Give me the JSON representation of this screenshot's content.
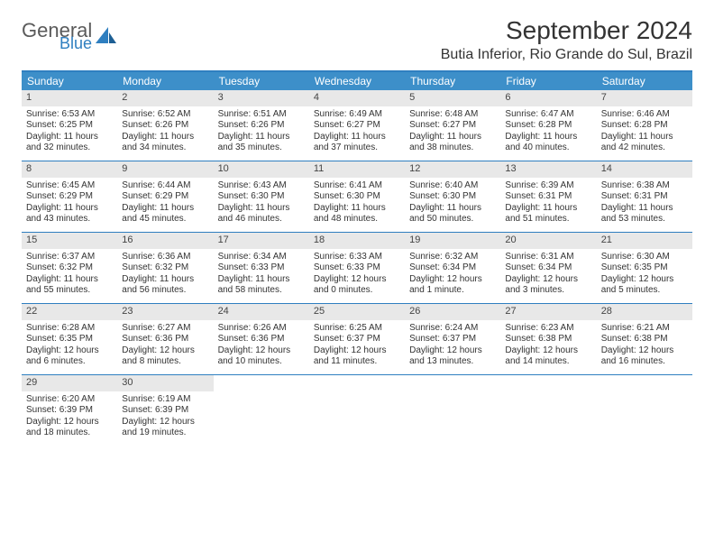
{
  "brand": {
    "part1": "General",
    "part2": "Blue"
  },
  "title": "September 2024",
  "location": "Butia Inferior, Rio Grande do Sul, Brazil",
  "colors": {
    "header_bar": "#3d8fc9",
    "border": "#2f7fc0",
    "daynum_bg": "#e8e8e8",
    "text": "#333333",
    "logo_gray": "#5a5a5a",
    "logo_blue": "#2f7fc0",
    "background": "#ffffff"
  },
  "weekdays": [
    "Sunday",
    "Monday",
    "Tuesday",
    "Wednesday",
    "Thursday",
    "Friday",
    "Saturday"
  ],
  "weeks": [
    [
      {
        "n": "1",
        "sr": "6:53 AM",
        "ss": "6:25 PM",
        "dl": "11 hours and 32 minutes."
      },
      {
        "n": "2",
        "sr": "6:52 AM",
        "ss": "6:26 PM",
        "dl": "11 hours and 34 minutes."
      },
      {
        "n": "3",
        "sr": "6:51 AM",
        "ss": "6:26 PM",
        "dl": "11 hours and 35 minutes."
      },
      {
        "n": "4",
        "sr": "6:49 AM",
        "ss": "6:27 PM",
        "dl": "11 hours and 37 minutes."
      },
      {
        "n": "5",
        "sr": "6:48 AM",
        "ss": "6:27 PM",
        "dl": "11 hours and 38 minutes."
      },
      {
        "n": "6",
        "sr": "6:47 AM",
        "ss": "6:28 PM",
        "dl": "11 hours and 40 minutes."
      },
      {
        "n": "7",
        "sr": "6:46 AM",
        "ss": "6:28 PM",
        "dl": "11 hours and 42 minutes."
      }
    ],
    [
      {
        "n": "8",
        "sr": "6:45 AM",
        "ss": "6:29 PM",
        "dl": "11 hours and 43 minutes."
      },
      {
        "n": "9",
        "sr": "6:44 AM",
        "ss": "6:29 PM",
        "dl": "11 hours and 45 minutes."
      },
      {
        "n": "10",
        "sr": "6:43 AM",
        "ss": "6:30 PM",
        "dl": "11 hours and 46 minutes."
      },
      {
        "n": "11",
        "sr": "6:41 AM",
        "ss": "6:30 PM",
        "dl": "11 hours and 48 minutes."
      },
      {
        "n": "12",
        "sr": "6:40 AM",
        "ss": "6:30 PM",
        "dl": "11 hours and 50 minutes."
      },
      {
        "n": "13",
        "sr": "6:39 AM",
        "ss": "6:31 PM",
        "dl": "11 hours and 51 minutes."
      },
      {
        "n": "14",
        "sr": "6:38 AM",
        "ss": "6:31 PM",
        "dl": "11 hours and 53 minutes."
      }
    ],
    [
      {
        "n": "15",
        "sr": "6:37 AM",
        "ss": "6:32 PM",
        "dl": "11 hours and 55 minutes."
      },
      {
        "n": "16",
        "sr": "6:36 AM",
        "ss": "6:32 PM",
        "dl": "11 hours and 56 minutes."
      },
      {
        "n": "17",
        "sr": "6:34 AM",
        "ss": "6:33 PM",
        "dl": "11 hours and 58 minutes."
      },
      {
        "n": "18",
        "sr": "6:33 AM",
        "ss": "6:33 PM",
        "dl": "12 hours and 0 minutes."
      },
      {
        "n": "19",
        "sr": "6:32 AM",
        "ss": "6:34 PM",
        "dl": "12 hours and 1 minute."
      },
      {
        "n": "20",
        "sr": "6:31 AM",
        "ss": "6:34 PM",
        "dl": "12 hours and 3 minutes."
      },
      {
        "n": "21",
        "sr": "6:30 AM",
        "ss": "6:35 PM",
        "dl": "12 hours and 5 minutes."
      }
    ],
    [
      {
        "n": "22",
        "sr": "6:28 AM",
        "ss": "6:35 PM",
        "dl": "12 hours and 6 minutes."
      },
      {
        "n": "23",
        "sr": "6:27 AM",
        "ss": "6:36 PM",
        "dl": "12 hours and 8 minutes."
      },
      {
        "n": "24",
        "sr": "6:26 AM",
        "ss": "6:36 PM",
        "dl": "12 hours and 10 minutes."
      },
      {
        "n": "25",
        "sr": "6:25 AM",
        "ss": "6:37 PM",
        "dl": "12 hours and 11 minutes."
      },
      {
        "n": "26",
        "sr": "6:24 AM",
        "ss": "6:37 PM",
        "dl": "12 hours and 13 minutes."
      },
      {
        "n": "27",
        "sr": "6:23 AM",
        "ss": "6:38 PM",
        "dl": "12 hours and 14 minutes."
      },
      {
        "n": "28",
        "sr": "6:21 AM",
        "ss": "6:38 PM",
        "dl": "12 hours and 16 minutes."
      }
    ],
    [
      {
        "n": "29",
        "sr": "6:20 AM",
        "ss": "6:39 PM",
        "dl": "12 hours and 18 minutes."
      },
      {
        "n": "30",
        "sr": "6:19 AM",
        "ss": "6:39 PM",
        "dl": "12 hours and 19 minutes."
      },
      null,
      null,
      null,
      null,
      null
    ]
  ],
  "labels": {
    "sunrise": "Sunrise:",
    "sunset": "Sunset:",
    "daylight": "Daylight:"
  }
}
